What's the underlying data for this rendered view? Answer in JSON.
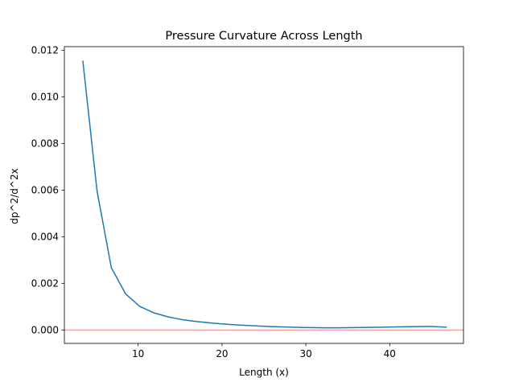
{
  "chart_data": {
    "type": "line",
    "title": "Pressure Curvature Across Length",
    "xlabel": "Length (x)",
    "ylabel": "dp^2/d^2x",
    "xlim": [
      1.2,
      48.8
    ],
    "ylim": [
      -0.000575,
      0.01215
    ],
    "x_ticks": [
      10,
      20,
      30,
      40
    ],
    "x_tick_labels": [
      "10",
      "20",
      "30",
      "40"
    ],
    "y_ticks": [
      0.0,
      0.002,
      0.004,
      0.006,
      0.008,
      0.01,
      0.012
    ],
    "y_tick_labels": [
      "0.000",
      "0.002",
      "0.004",
      "0.006",
      "0.008",
      "0.010",
      "0.012"
    ],
    "grid": false,
    "series": [
      {
        "color": "#1f77b4",
        "x": [
          3.4,
          5.1,
          6.8,
          8.5,
          10.2,
          11.9,
          13.6,
          15.3,
          17.0,
          18.7,
          20.4,
          22.1,
          23.8,
          25.5,
          27.2,
          28.9,
          30.6,
          32.3,
          34.0,
          35.7,
          37.4,
          39.1,
          40.8,
          42.5,
          44.2,
          45.0,
          46.8
        ],
        "values": [
          0.01155,
          0.00595,
          0.00267,
          0.00155,
          0.00101,
          0.00073,
          0.00056,
          0.00044,
          0.00036,
          0.0003,
          0.00025,
          0.00021,
          0.00018,
          0.00015,
          0.00013,
          0.000115,
          0.0001,
          9.5e-05,
          9.5e-05,
          0.0001,
          0.00011,
          0.00012,
          0.00013,
          0.00014,
          0.00015,
          0.00015,
          0.00012
        ]
      }
    ],
    "reference_lines": [
      {
        "orientation": "horizontal",
        "y": 0.0,
        "color": "#f4a6a6"
      }
    ]
  }
}
